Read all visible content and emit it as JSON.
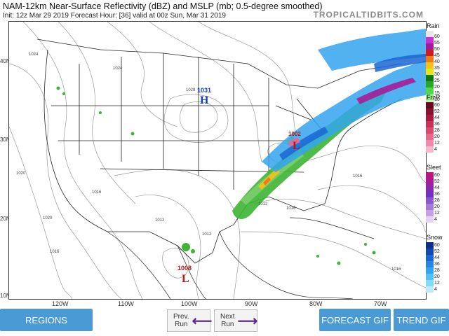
{
  "header": {
    "title": "NAM-12km Near-Surface Reflectivity (dBZ) and MSLP (mb; 0.5-degree smoothed)",
    "subtitle": "Init: 12z Mar 29 2019   Forecast Hour: [36]   valid at 00z Sun, Mar 31 2019",
    "brand": "TROPICALTIDBITS.COM"
  },
  "map": {
    "lat_labels": [
      "40N",
      "30N",
      "20N",
      "10N"
    ],
    "lon_labels": [
      "120W",
      "110W",
      "100W",
      "90W",
      "80W",
      "70W"
    ],
    "pressure_centers": [
      {
        "label": "H",
        "value": "1031",
        "color": "#1a3fb5"
      },
      {
        "label": "L",
        "value": "1008",
        "color": "#b01818"
      },
      {
        "label": "L",
        "value": "1002",
        "color": "#b01818"
      }
    ],
    "isobar_labels": [
      "1024",
      "1028",
      "1024",
      "1020",
      "1016",
      "1012",
      "1020",
      "1016",
      "1012",
      "1016",
      "1016",
      "1016",
      "1012"
    ]
  },
  "legend": {
    "rain": {
      "title": "Rain",
      "values": [
        "60",
        "55",
        "50",
        "45",
        "40",
        "35",
        "30",
        "25",
        "20",
        "15",
        "10"
      ],
      "colors": [
        "#e8e8e8",
        "#c92fd8",
        "#a2199c",
        "#d11a1a",
        "#f07a1a",
        "#f0c21a",
        "#e8e21a",
        "#0f7a12",
        "#27a62a",
        "#4fd84a",
        "#8fe57d",
        "#c8f0bb"
      ]
    },
    "frzr": {
      "title": "FrzR",
      "values": [
        "60",
        "52",
        "44",
        "36",
        "28",
        "20",
        "12",
        "4"
      ],
      "colors": [
        "#6a0820",
        "#8a1030",
        "#a81a40",
        "#c83058",
        "#d84a70",
        "#e66a8c",
        "#f08aaa",
        "#f8b8cc"
      ]
    },
    "sleet": {
      "title": "Sleet",
      "values": [
        "60",
        "52",
        "44",
        "36",
        "28",
        "20",
        "12",
        "4"
      ],
      "colors": [
        "#c0147c",
        "#a81c98",
        "#8a28b0",
        "#7032c0",
        "#8a58cc",
        "#a87ad8",
        "#c8a0e6",
        "#e6d2f4"
      ]
    },
    "snow": {
      "title": "Snow",
      "values": [
        "60",
        "52",
        "44",
        "36",
        "28",
        "20",
        "12",
        "4"
      ],
      "colors": [
        "#0a2e8a",
        "#1248b2",
        "#1a66d2",
        "#2486e2",
        "#34a4ee",
        "#54c0f4",
        "#86d8f8",
        "#bcecfc"
      ]
    }
  },
  "buttons": {
    "regions": "REGIONS",
    "prev_line1": "Prev.",
    "prev_line2": "Run",
    "next_line1": "Next",
    "next_line2": "Run",
    "forecast_gif": "FORECAST GIF",
    "trend_gif": "TREND GIF"
  }
}
